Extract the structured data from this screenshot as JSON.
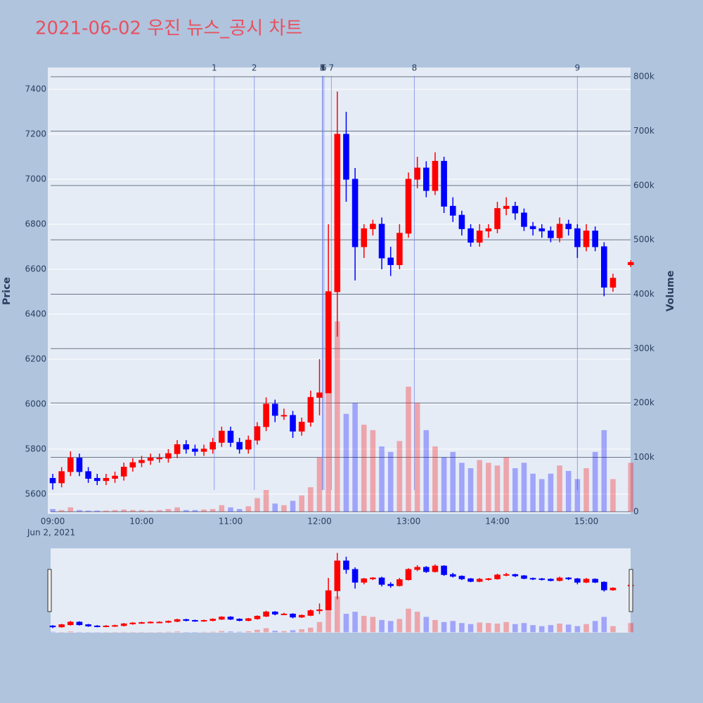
{
  "chart_data": {
    "type": "candlestick",
    "title": "2021-06-02 우진 뉴스_공시 차트",
    "y_title": "Price",
    "y2_title": "Volume",
    "x_date_label": "Jun 2, 2021",
    "increasing_color": "#ff0000",
    "decreasing_color": "#0000ff",
    "news_color": "#6f7fe8",
    "xlim": [
      "2021-06-02 08:56:41",
      "2021-06-02 15:29:53"
    ],
    "xticks": [
      {
        "value": "2021-06-02 09:00",
        "label": "09:00"
      },
      {
        "value": "2021-06-02 10:00",
        "label": "10:00"
      },
      {
        "value": "2021-06-02 11:00",
        "label": "11:00"
      },
      {
        "value": "2021-06-02 12:00",
        "label": "12:00"
      },
      {
        "value": "2021-06-02 13:00",
        "label": "13:00"
      },
      {
        "value": "2021-06-02 14:00",
        "label": "14:00"
      },
      {
        "value": "2021-06-02 15:00",
        "label": "15:00"
      }
    ],
    "ylim": [
      5512,
      7497
    ],
    "yticks": [
      5600,
      5800,
      6000,
      6200,
      6400,
      6600,
      6800,
      7000,
      7200,
      7400
    ],
    "y2lim": [
      -4000,
      817000
    ],
    "y2ticks": [
      0,
      {
        "value": 100000,
        "label": "100k"
      },
      {
        "value": 200000,
        "label": "200k"
      },
      {
        "value": 300000,
        "label": "300k"
      },
      {
        "value": 400000,
        "label": "400k"
      },
      {
        "value": 500000,
        "label": "500k"
      },
      {
        "value": 600000,
        "label": "600k"
      },
      {
        "value": 700000,
        "label": "700k"
      },
      {
        "value": 800000,
        "label": "800k"
      }
    ],
    "news": [
      {
        "label": "1",
        "x": "2021-06-02 10:49"
      },
      {
        "label": "2",
        "x": "2021-06-02 11:16"
      },
      {
        "label": "3",
        "x": "2021-06-02 12:02"
      },
      {
        "label": "4",
        "x": "2021-06-02 12:02"
      },
      {
        "label": "5",
        "x": "2021-06-02 12:02"
      },
      {
        "label": "6",
        "x": "2021-06-02 12:03"
      },
      {
        "label": "7",
        "x": "2021-06-02 12:08"
      },
      {
        "label": "8",
        "x": "2021-06-02 13:04"
      },
      {
        "label": "9",
        "x": "2021-06-02 14:54"
      }
    ],
    "x": [
      "2021-06-02 09:00",
      "2021-06-02 09:06",
      "2021-06-02 09:12",
      "2021-06-02 09:18",
      "2021-06-02 09:24",
      "2021-06-02 09:30",
      "2021-06-02 09:36",
      "2021-06-02 09:42",
      "2021-06-02 09:48",
      "2021-06-02 09:54",
      "2021-06-02 10:00",
      "2021-06-02 10:06",
      "2021-06-02 10:12",
      "2021-06-02 10:18",
      "2021-06-02 10:24",
      "2021-06-02 10:30",
      "2021-06-02 10:36",
      "2021-06-02 10:42",
      "2021-06-02 10:48",
      "2021-06-02 10:54",
      "2021-06-02 11:00",
      "2021-06-02 11:06",
      "2021-06-02 11:12",
      "2021-06-02 11:18",
      "2021-06-02 11:24",
      "2021-06-02 11:30",
      "2021-06-02 11:36",
      "2021-06-02 11:42",
      "2021-06-02 11:48",
      "2021-06-02 11:54",
      "2021-06-02 12:00",
      "2021-06-02 12:06",
      "2021-06-02 12:12",
      "2021-06-02 12:18",
      "2021-06-02 12:24",
      "2021-06-02 12:30",
      "2021-06-02 12:36",
      "2021-06-02 12:42",
      "2021-06-02 12:48",
      "2021-06-02 12:54",
      "2021-06-02 13:00",
      "2021-06-02 13:06",
      "2021-06-02 13:12",
      "2021-06-02 13:18",
      "2021-06-02 13:24",
      "2021-06-02 13:30",
      "2021-06-02 13:36",
      "2021-06-02 13:42",
      "2021-06-02 13:48",
      "2021-06-02 13:54",
      "2021-06-02 14:00",
      "2021-06-02 14:06",
      "2021-06-02 14:12",
      "2021-06-02 14:18",
      "2021-06-02 14:24",
      "2021-06-02 14:30",
      "2021-06-02 14:36",
      "2021-06-02 14:42",
      "2021-06-02 14:48",
      "2021-06-02 14:54",
      "2021-06-02 15:00",
      "2021-06-02 15:06",
      "2021-06-02 15:12",
      "2021-06-02 15:18",
      "2021-06-02 15:30"
    ],
    "open": [
      5670,
      5650,
      5700,
      5760,
      5700,
      5670,
      5660,
      5670,
      5680,
      5720,
      5740,
      5750,
      5760,
      5760,
      5780,
      5820,
      5800,
      5790,
      5800,
      5830,
      5880,
      5830,
      5800,
      5840,
      5900,
      6000,
      5950,
      5950,
      5880,
      5920,
      6030,
      6050,
      6500,
      7200,
      7000,
      6700,
      6780,
      6800,
      6650,
      6620,
      6760,
      7000,
      7050,
      6950,
      7080,
      6880,
      6840,
      6780,
      6720,
      6770,
      6780,
      6870,
      6880,
      6850,
      6790,
      6780,
      6770,
      6740,
      6800,
      6780,
      6700,
      6770,
      6700,
      6520,
      6620
    ],
    "high": [
      5690,
      5720,
      5790,
      5780,
      5720,
      5690,
      5690,
      5700,
      5740,
      5760,
      5770,
      5780,
      5780,
      5800,
      5840,
      5840,
      5820,
      5820,
      5850,
      5900,
      5900,
      5850,
      5860,
      5920,
      6030,
      6020,
      5980,
      5970,
      5940,
      6060,
      6200,
      6800,
      7390,
      7300,
      7050,
      6800,
      6820,
      6830,
      6700,
      6800,
      7030,
      7100,
      7080,
      7120,
      7100,
      6920,
      6860,
      6800,
      6800,
      6800,
      6900,
      6920,
      6900,
      6870,
      6810,
      6800,
      6790,
      6830,
      6820,
      6800,
      6800,
      6790,
      6720,
      6580,
      6640
    ],
    "low": [
      5620,
      5630,
      5680,
      5680,
      5650,
      5640,
      5640,
      5650,
      5660,
      5700,
      5720,
      5730,
      5740,
      5740,
      5760,
      5780,
      5770,
      5770,
      5780,
      5810,
      5810,
      5780,
      5780,
      5820,
      5880,
      5920,
      5930,
      5850,
      5860,
      5900,
      5950,
      6050,
      6300,
      6900,
      6550,
      6650,
      6750,
      6600,
      6570,
      6600,
      6740,
      6960,
      6920,
      6930,
      6850,
      6810,
      6750,
      6700,
      6700,
      6740,
      6760,
      6840,
      6820,
      6770,
      6750,
      6740,
      6720,
      6720,
      6750,
      6650,
      6680,
      6680,
      6480,
      6500,
      6610
    ],
    "close": [
      5650,
      5700,
      5760,
      5700,
      5670,
      5660,
      5670,
      5680,
      5720,
      5740,
      5750,
      5760,
      5760,
      5780,
      5820,
      5800,
      5790,
      5800,
      5830,
      5880,
      5830,
      5800,
      5840,
      5900,
      6000,
      5950,
      5950,
      5880,
      5920,
      6030,
      6050,
      6500,
      7200,
      7000,
      6700,
      6780,
      6800,
      6650,
      6620,
      6760,
      7000,
      7050,
      6950,
      7080,
      6880,
      6840,
      6780,
      6720,
      6770,
      6780,
      6870,
      6880,
      6850,
      6790,
      6780,
      6770,
      6740,
      6800,
      6780,
      6700,
      6770,
      6700,
      6520,
      6560,
      6630
    ],
    "volume": [
      5000,
      3000,
      8000,
      3000,
      2000,
      2000,
      2000,
      3000,
      4000,
      3000,
      3000,
      2000,
      3000,
      5000,
      8000,
      3000,
      3000,
      4000,
      5000,
      12000,
      8000,
      5000,
      10000,
      25000,
      40000,
      15000,
      12000,
      20000,
      30000,
      45000,
      100000,
      380000,
      350000,
      180000,
      200000,
      160000,
      150000,
      120000,
      110000,
      130000,
      230000,
      200000,
      150000,
      120000,
      100000,
      110000,
      90000,
      80000,
      95000,
      90000,
      85000,
      100000,
      80000,
      90000,
      70000,
      60000,
      70000,
      85000,
      75000,
      60000,
      80000,
      110000,
      150000,
      60000,
      90000
    ]
  }
}
